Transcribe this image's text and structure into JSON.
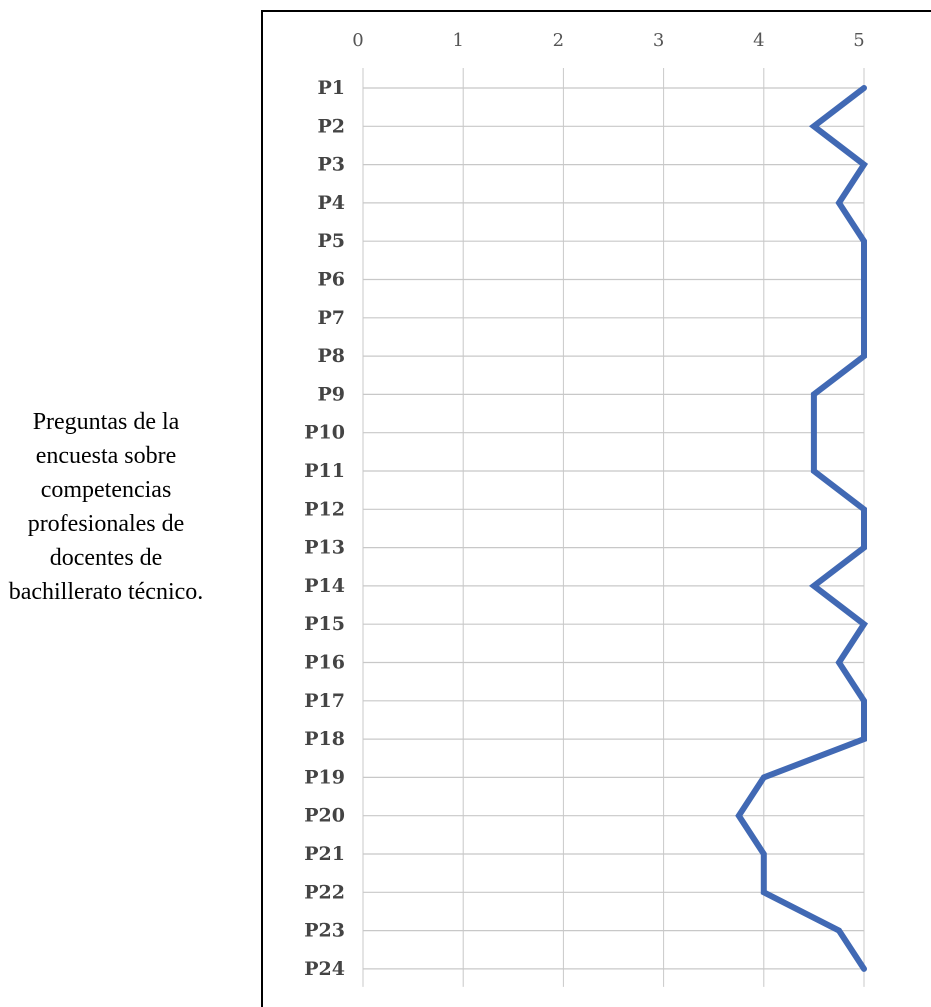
{
  "side_label": "Preguntas de la encuesta sobre competencias profesionales de docentes de bachillerato técnico.",
  "chart_data": {
    "type": "line",
    "orientation": "horizontal",
    "categories": [
      "P1",
      "P2",
      "P3",
      "P4",
      "P5",
      "P6",
      "P7",
      "P8",
      "P9",
      "P10",
      "P11",
      "P12",
      "P13",
      "P14",
      "P15",
      "P16",
      "P17",
      "P18",
      "P19",
      "P20",
      "P21",
      "P22",
      "P23",
      "P24"
    ],
    "values": [
      5,
      4.5,
      5,
      4.75,
      5,
      5,
      5,
      5,
      4.5,
      4.5,
      4.5,
      5,
      5,
      4.5,
      5,
      4.75,
      5,
      5,
      4,
      3.75,
      4,
      4,
      4.75,
      5
    ],
    "x_ticks": [
      "0",
      "1",
      "2",
      "3",
      "4",
      "5"
    ],
    "xlim": [
      0,
      5
    ],
    "axis_position": "top",
    "grid": true,
    "line_color": "#4169b4",
    "grid_color": "#c8c8c8",
    "title": "",
    "xlabel": "",
    "ylabel": ""
  }
}
